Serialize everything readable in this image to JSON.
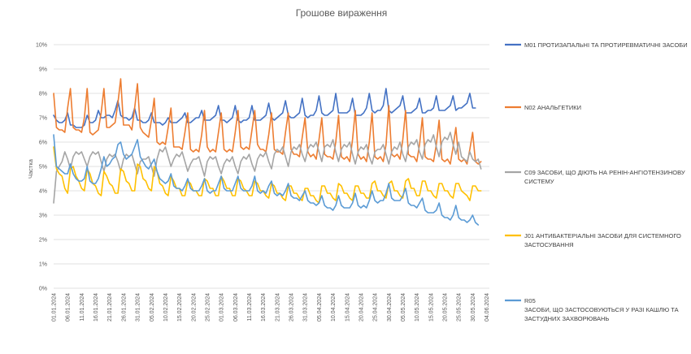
{
  "chart_data": {
    "type": "line",
    "title": "Грошове вираження",
    "ylabel": "Частка",
    "xlabel": "",
    "ylim": [
      0,
      10
    ],
    "y_ticks": [
      "0%",
      "1%",
      "2%",
      "3%",
      "4%",
      "5%",
      "6%",
      "7%",
      "8%",
      "9%",
      "10%"
    ],
    "x_tick_labels": [
      "01.01.2024",
      "06.01.2024",
      "11.01.2024",
      "16.01.2024",
      "21.01.2024",
      "26.01.2024",
      "31.01.2024",
      "05.02.2024",
      "10.02.2024",
      "15.02.2024",
      "20.02.2024",
      "25.02.2024",
      "01.03.2024",
      "06.03.2024",
      "11.03.2024",
      "16.03.2024",
      "21.03.2024",
      "26.03.2024",
      "31.03.2024",
      "05.04.2024",
      "10.04.2024",
      "15.04.2024",
      "20.04.2024",
      "25.04.2024",
      "30.04.2024",
      "05.05.2024",
      "10.05.2024",
      "15.05.2024",
      "20.05.2024",
      "25.05.2024",
      "30.05.2024",
      "04.06.2024"
    ],
    "x_tick_step_days": 5,
    "x_days": 157,
    "grid": "horizontal",
    "legend_position": "right",
    "series": [
      {
        "name": "M01 ПРОТИЗАПАЛЬНІ ТА ПРОТИРЕВМАТИЧНІ ЗАСОБИ",
        "color": "#4472C4",
        "values": [
          7.1,
          6.9,
          6.8,
          6.8,
          6.9,
          7.2,
          6.7,
          6.7,
          6.6,
          6.6,
          6.6,
          6.7,
          7.1,
          6.8,
          6.8,
          6.9,
          7.3,
          7.0,
          7.0,
          7.1,
          7.1,
          7.0,
          7.3,
          7.7,
          7.1,
          7.0,
          7.0,
          6.9,
          7.0,
          7.4,
          6.9,
          6.9,
          6.8,
          6.8,
          6.9,
          7.2,
          6.8,
          6.8,
          6.8,
          6.7,
          6.8,
          7.0,
          6.8,
          6.8,
          6.8,
          6.9,
          7.0,
          7.2,
          6.8,
          6.8,
          6.9,
          7.0,
          7.0,
          7.3,
          6.9,
          6.9,
          6.9,
          7.0,
          7.1,
          7.5,
          6.9,
          6.9,
          6.8,
          6.9,
          7.0,
          7.5,
          6.9,
          6.8,
          6.9,
          6.9,
          7.0,
          7.5,
          6.9,
          6.9,
          6.9,
          7.0,
          7.1,
          7.6,
          7.0,
          6.9,
          7.0,
          7.1,
          7.2,
          7.7,
          7.1,
          7.0,
          7.0,
          7.1,
          7.2,
          7.8,
          7.1,
          7.0,
          7.1,
          7.1,
          7.3,
          7.9,
          7.2,
          7.1,
          7.1,
          7.2,
          7.3,
          8.0,
          7.2,
          7.2,
          7.2,
          7.2,
          7.3,
          7.8,
          7.1,
          7.1,
          7.1,
          7.2,
          7.4,
          8.0,
          7.3,
          7.2,
          7.3,
          7.3,
          7.5,
          8.2,
          7.3,
          7.2,
          7.3,
          7.4,
          7.5,
          7.9,
          7.2,
          7.2,
          7.2,
          7.3,
          7.4,
          7.8,
          7.2,
          7.2,
          7.3,
          7.3,
          7.4,
          7.9,
          7.3,
          7.3,
          7.3,
          7.4,
          7.5,
          7.9,
          7.3,
          7.4,
          7.4,
          7.5,
          7.6,
          8.0,
          7.4,
          7.4
        ]
      },
      {
        "name": "N02 АНАЛЬГЕТИКИ",
        "color": "#ED7D31",
        "values": [
          8.0,
          6.6,
          6.5,
          6.5,
          6.4,
          7.4,
          8.2,
          6.6,
          6.5,
          6.5,
          6.4,
          7.0,
          8.2,
          6.4,
          6.3,
          6.4,
          6.5,
          7.2,
          8.2,
          6.6,
          6.6,
          6.7,
          6.8,
          7.6,
          8.6,
          6.7,
          6.7,
          6.7,
          6.5,
          7.4,
          8.4,
          6.6,
          6.4,
          6.3,
          6.2,
          6.9,
          7.8,
          6.0,
          5.9,
          6.0,
          5.9,
          6.6,
          7.4,
          5.8,
          5.8,
          5.8,
          5.7,
          6.4,
          7.2,
          5.7,
          5.6,
          5.7,
          5.6,
          6.3,
          7.3,
          5.8,
          5.6,
          5.7,
          5.6,
          6.4,
          7.2,
          5.7,
          5.6,
          5.7,
          5.6,
          6.4,
          7.3,
          5.8,
          5.7,
          5.8,
          5.7,
          6.5,
          7.3,
          5.9,
          5.7,
          5.7,
          5.6,
          6.3,
          7.2,
          5.7,
          5.6,
          5.6,
          5.5,
          6.4,
          7.2,
          5.7,
          5.5,
          5.5,
          5.4,
          6.2,
          7.0,
          5.6,
          5.4,
          5.5,
          5.3,
          6.1,
          7.0,
          5.5,
          5.4,
          5.4,
          5.3,
          6.0,
          7.1,
          5.4,
          5.3,
          5.4,
          5.2,
          6.1,
          7.3,
          5.5,
          5.3,
          5.4,
          5.2,
          6.0,
          7.2,
          5.4,
          5.3,
          5.4,
          5.2,
          5.9,
          7.5,
          5.5,
          5.4,
          5.5,
          5.3,
          6.1,
          7.3,
          5.5,
          5.4,
          5.4,
          5.2,
          5.9,
          7.0,
          5.4,
          5.3,
          5.3,
          5.2,
          5.9,
          6.9,
          5.3,
          5.2,
          5.3,
          5.1,
          5.8,
          6.6,
          5.3,
          5.2,
          5.3,
          5.1,
          5.7,
          6.4,
          5.2,
          5.1,
          5.2
        ]
      },
      {
        "name": "C09 ЗАСОБИ, ЩО ДІЮТЬ НА РЕНІН-АНГІОТЕНЗИНОВУ СИСТЕМУ",
        "color": "#A5A5A5",
        "values": [
          3.5,
          4.8,
          5.0,
          5.2,
          5.6,
          5.3,
          4.9,
          5.4,
          5.6,
          5.5,
          5.6,
          5.3,
          5.0,
          5.4,
          5.6,
          5.5,
          5.6,
          5.2,
          4.8,
          5.3,
          5.5,
          5.4,
          5.5,
          5.2,
          4.8,
          5.3,
          5.5,
          5.4,
          5.5,
          5.1,
          4.7,
          5.2,
          5.3,
          5.3,
          5.4,
          5.0,
          4.6,
          5.3,
          5.7,
          5.6,
          5.8,
          5.4,
          5.0,
          5.3,
          5.5,
          5.4,
          5.6,
          5.2,
          4.8,
          5.1,
          5.3,
          5.3,
          5.4,
          5.0,
          4.6,
          5.2,
          5.4,
          5.3,
          5.4,
          5.0,
          4.7,
          5.1,
          5.3,
          5.2,
          5.4,
          5.0,
          4.7,
          5.2,
          5.4,
          5.3,
          5.5,
          5.1,
          4.8,
          5.3,
          5.5,
          5.4,
          5.6,
          5.2,
          4.9,
          5.5,
          5.7,
          5.6,
          5.8,
          5.4,
          5.0,
          5.6,
          5.8,
          5.7,
          5.9,
          5.5,
          5.2,
          5.7,
          5.9,
          5.8,
          6.0,
          5.6,
          5.2,
          5.8,
          5.9,
          5.8,
          6.1,
          5.6,
          5.2,
          5.7,
          5.9,
          5.8,
          6.0,
          5.5,
          5.1,
          5.6,
          5.8,
          5.7,
          5.9,
          5.4,
          5.1,
          5.6,
          5.7,
          5.7,
          5.9,
          5.5,
          5.1,
          5.6,
          5.8,
          5.7,
          6.0,
          5.5,
          5.2,
          5.8,
          6.0,
          5.9,
          6.1,
          5.6,
          5.3,
          5.9,
          6.1,
          6.0,
          6.3,
          5.8,
          5.4,
          6.0,
          6.2,
          6.1,
          6.4,
          5.9,
          5.5,
          6.0,
          5.4,
          5.3,
          5.2,
          5.6,
          5.3,
          5.2,
          5.3,
          4.9
        ]
      },
      {
        "name": "J01 АНТИБАКТЕРІАЛЬНІ ЗАСОБИ ДЛЯ СИСТЕМНОГО ЗАСТОСУВАННЯ",
        "color": "#FFC000",
        "values": [
          5.8,
          4.9,
          4.7,
          4.6,
          4.1,
          3.9,
          4.9,
          5.0,
          4.6,
          4.4,
          4.1,
          4.0,
          4.9,
          4.7,
          4.3,
          4.2,
          3.9,
          3.8,
          4.8,
          4.6,
          4.3,
          4.2,
          3.9,
          3.9,
          4.9,
          4.8,
          4.4,
          4.3,
          4.0,
          4.0,
          5.1,
          5.0,
          4.5,
          4.4,
          4.1,
          4.0,
          5.0,
          4.8,
          4.3,
          4.2,
          3.9,
          3.8,
          4.6,
          4.4,
          4.1,
          4.1,
          3.8,
          3.8,
          4.4,
          4.3,
          4.0,
          4.0,
          3.8,
          3.8,
          4.5,
          4.4,
          4.1,
          4.1,
          3.8,
          3.8,
          4.6,
          4.4,
          4.1,
          4.1,
          3.8,
          3.8,
          4.5,
          4.4,
          4.1,
          4.0,
          3.8,
          3.8,
          4.4,
          4.3,
          4.0,
          4.0,
          3.8,
          3.7,
          4.3,
          4.2,
          3.9,
          3.9,
          3.7,
          3.6,
          4.2,
          4.2,
          3.9,
          3.9,
          3.7,
          3.6,
          4.1,
          4.1,
          3.8,
          3.8,
          3.6,
          3.5,
          4.2,
          4.2,
          3.9,
          3.9,
          3.7,
          3.6,
          4.3,
          4.2,
          3.9,
          3.9,
          3.7,
          3.6,
          4.2,
          4.2,
          3.9,
          3.9,
          3.7,
          3.7,
          4.3,
          4.4,
          4.0,
          4.0,
          3.8,
          3.7,
          4.3,
          4.4,
          4.0,
          4.0,
          3.8,
          3.7,
          4.4,
          4.5,
          4.1,
          4.1,
          3.8,
          3.8,
          4.4,
          4.4,
          4.0,
          4.0,
          3.8,
          3.7,
          4.3,
          4.3,
          4.0,
          4.0,
          3.8,
          3.7,
          4.3,
          4.3,
          4.0,
          3.9,
          3.8,
          3.6,
          4.2,
          4.2,
          4.0,
          4.0
        ]
      },
      {
        "name": "R05 ЗАСОБИ, ЩО ЗАСТОСОВУЮТЬСЯ У РАЗІ КАШЛЮ ТА ЗАСТУДНИХ ЗАХВОРЮВАНЬ",
        "color": "#5B9BD5",
        "values": [
          6.3,
          5.0,
          4.9,
          4.8,
          4.7,
          4.7,
          5.1,
          4.7,
          4.5,
          4.4,
          4.4,
          4.5,
          5.0,
          4.4,
          4.3,
          4.3,
          4.5,
          4.9,
          5.4,
          5.0,
          5.1,
          5.3,
          5.4,
          5.9,
          6.0,
          5.5,
          5.3,
          5.4,
          5.5,
          5.8,
          6.1,
          5.4,
          5.2,
          5.0,
          4.9,
          5.1,
          5.3,
          4.8,
          4.5,
          4.4,
          4.3,
          4.4,
          4.7,
          4.2,
          4.1,
          4.1,
          4.0,
          4.2,
          4.5,
          4.1,
          4.0,
          4.0,
          4.0,
          4.2,
          4.5,
          4.0,
          3.9,
          4.0,
          4.0,
          4.3,
          4.6,
          4.1,
          4.0,
          4.0,
          4.0,
          4.3,
          4.6,
          4.1,
          4.0,
          4.0,
          4.0,
          4.2,
          4.6,
          4.0,
          3.9,
          4.0,
          3.9,
          4.2,
          4.4,
          3.9,
          3.8,
          3.9,
          3.8,
          4.0,
          4.3,
          3.8,
          3.7,
          3.7,
          3.6,
          3.8,
          4.0,
          3.6,
          3.5,
          3.5,
          3.4,
          3.5,
          3.8,
          3.4,
          3.3,
          3.3,
          3.2,
          3.4,
          3.8,
          3.4,
          3.3,
          3.3,
          3.3,
          3.5,
          3.9,
          3.4,
          3.3,
          3.4,
          3.3,
          3.6,
          4.0,
          3.6,
          3.5,
          3.6,
          3.6,
          3.9,
          4.3,
          3.7,
          3.6,
          3.6,
          3.6,
          3.8,
          4.1,
          3.5,
          3.4,
          3.4,
          3.3,
          3.5,
          3.7,
          3.2,
          3.1,
          3.1,
          3.1,
          3.2,
          3.5,
          3.0,
          2.9,
          2.9,
          2.8,
          3.0,
          3.4,
          2.9,
          2.8,
          2.8,
          2.7,
          2.8,
          3.0,
          2.7,
          2.6
        ]
      }
    ],
    "legend_lines": [
      [
        "M01 ПРОТИЗАПАЛЬНІ ТА ПРОТИРЕВМАТИЧНІ ЗАСОБИ"
      ],
      [
        "N02 АНАЛЬГЕТИКИ"
      ],
      [
        "C09 ЗАСОБИ, ЩО ДІЮТЬ НА РЕНІН-АНГІОТЕНЗИНОВУ",
        "СИСТЕМУ"
      ],
      [
        "J01 АНТИБАКТЕРІАЛЬНІ ЗАСОБИ ДЛЯ СИСТЕМНОГО",
        "ЗАСТОСУВАННЯ"
      ],
      [
        "R05",
        "ЗАСОБИ, ЩО ЗАСТОСОВУЮТЬСЯ У РАЗІ КАШЛЮ ТА",
        "ЗАСТУДНИХ ЗАХВОРЮВАНЬ"
      ]
    ]
  }
}
